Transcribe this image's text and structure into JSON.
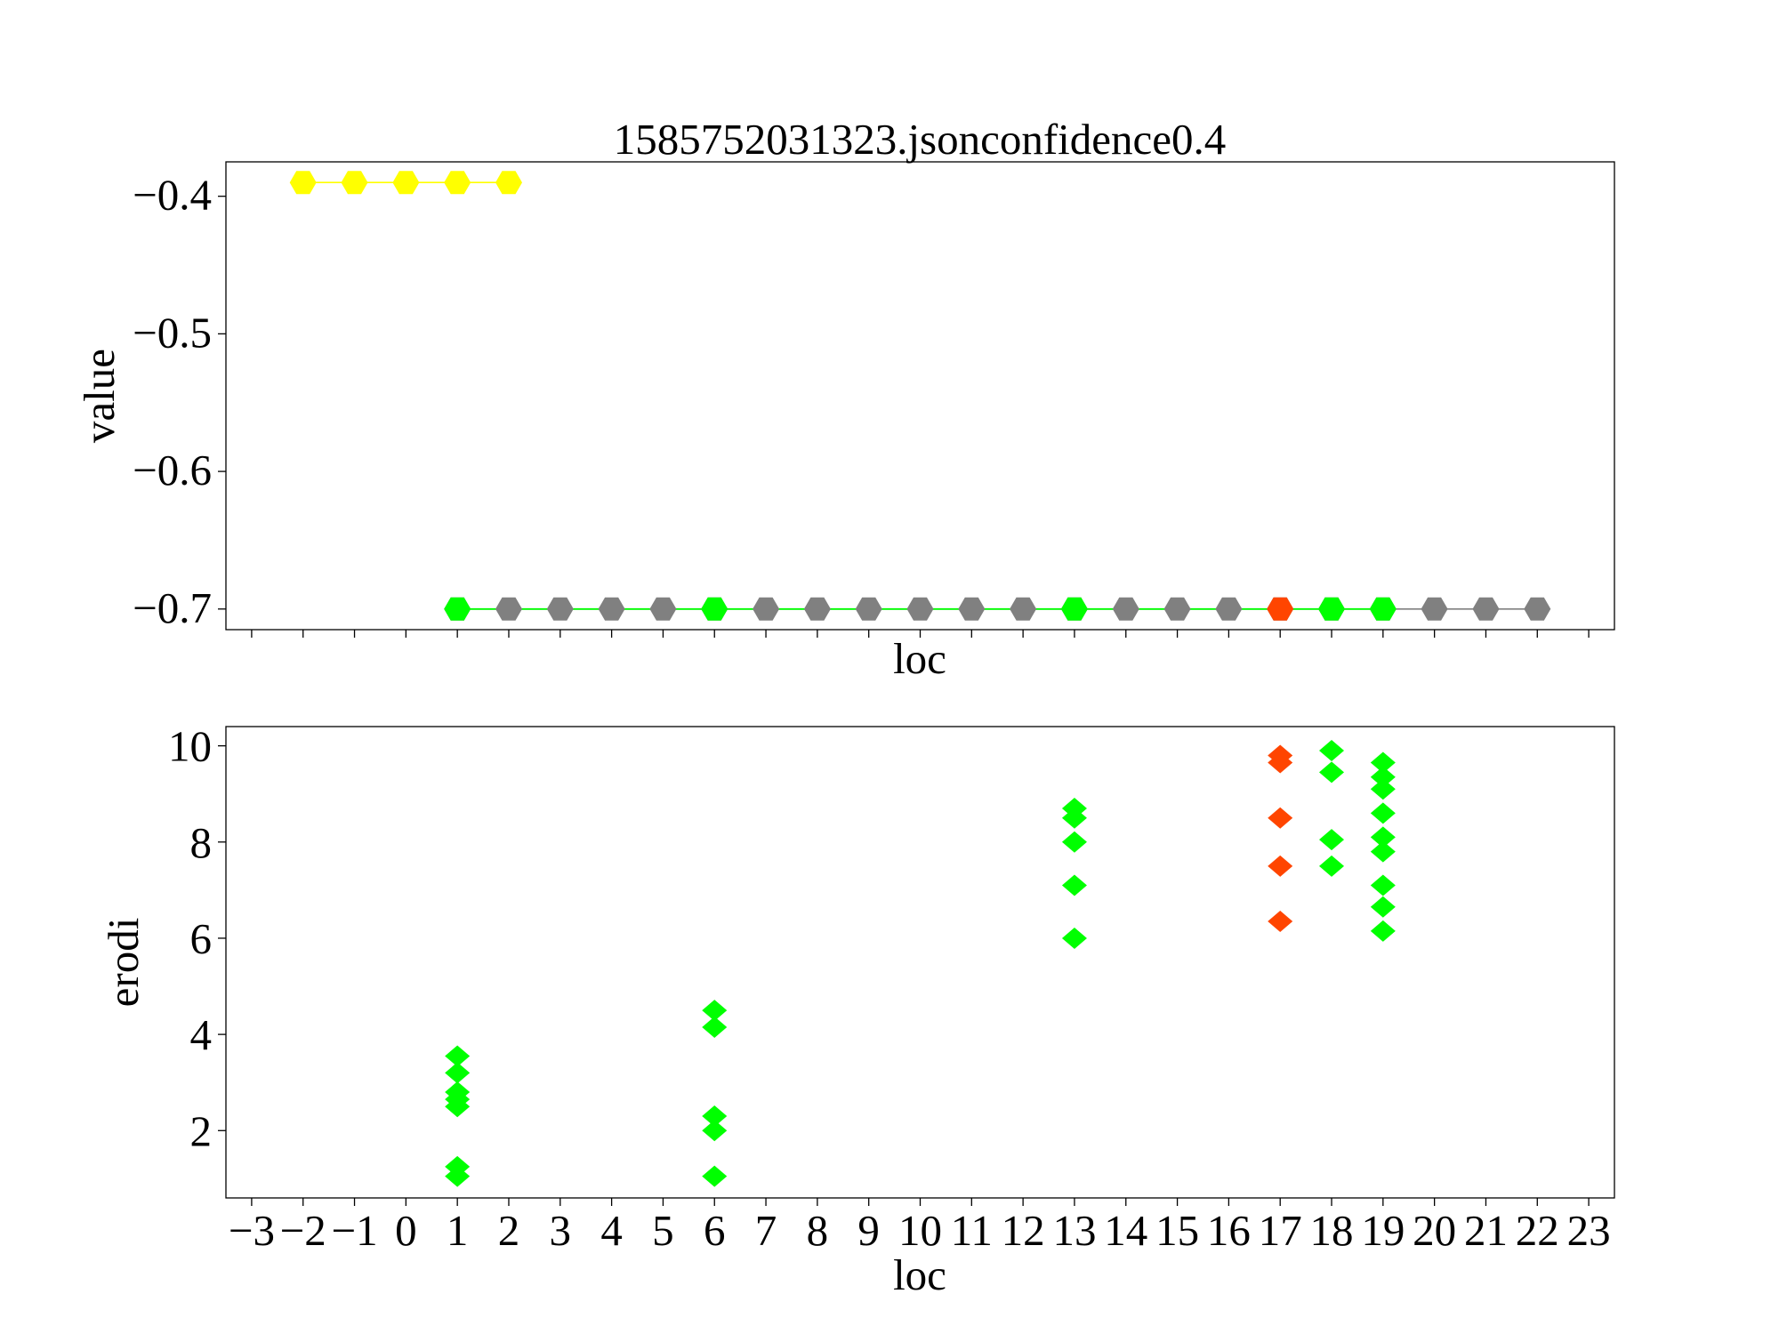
{
  "chart_data": [
    {
      "type": "line",
      "title": "1585752031323.jsonconfidence0.4",
      "xlabel": "loc",
      "ylabel": "value",
      "xlim": [
        -3.5,
        23.5
      ],
      "ylim": [
        -0.715,
        -0.375
      ],
      "yticks": [
        -0.4,
        -0.5,
        -0.6,
        -0.7
      ],
      "ytick_labels": [
        "−0.4",
        "−0.5",
        "−0.6",
        "−0.7"
      ],
      "x_ticklabels_shown": false,
      "grid": false,
      "series": [
        {
          "color": "#ffff00",
          "marker": "hexagon",
          "x": [
            -2,
            -1,
            0,
            1,
            2
          ],
          "y": [
            -0.39,
            -0.39,
            -0.39,
            -0.39,
            -0.39
          ]
        },
        {
          "color": "#808080",
          "marker": "hexagon",
          "x": [
            1,
            2,
            3,
            4,
            5,
            6,
            7,
            8,
            9,
            10,
            11,
            12,
            13,
            14,
            15,
            16,
            17,
            18,
            19,
            20,
            21,
            22
          ],
          "y": [
            -0.7,
            -0.7,
            -0.7,
            -0.7,
            -0.7,
            -0.7,
            -0.7,
            -0.7,
            -0.7,
            -0.7,
            -0.7,
            -0.7,
            -0.7,
            -0.7,
            -0.7,
            -0.7,
            -0.7,
            -0.7,
            -0.7,
            -0.7,
            -0.7,
            -0.7
          ]
        }
      ],
      "highlight_segment": {
        "color": "#00ff00",
        "x": [
          1,
          19
        ],
        "y": -0.7
      },
      "highlight_points": [
        {
          "x": 1,
          "y": -0.7,
          "color": "#00ff00"
        },
        {
          "x": 6,
          "y": -0.7,
          "color": "#00ff00"
        },
        {
          "x": 13,
          "y": -0.7,
          "color": "#00ff00"
        },
        {
          "x": 17,
          "y": -0.7,
          "color": "#ff4500"
        },
        {
          "x": 18,
          "y": -0.7,
          "color": "#00ff00"
        },
        {
          "x": 19,
          "y": -0.7,
          "color": "#00ff00"
        }
      ]
    },
    {
      "type": "scatter",
      "xlabel": "loc",
      "ylabel": "erodi",
      "xlim": [
        -3.5,
        23.5
      ],
      "ylim": [
        0.6,
        10.4
      ],
      "yticks": [
        2,
        4,
        6,
        8,
        10
      ],
      "ytick_labels": [
        "2",
        "4",
        "6",
        "8",
        "10"
      ],
      "xticks": [
        -3,
        -2,
        -1,
        0,
        1,
        2,
        3,
        4,
        5,
        6,
        7,
        8,
        9,
        10,
        11,
        12,
        13,
        14,
        15,
        16,
        17,
        18,
        19,
        20,
        21,
        22,
        23
      ],
      "xtick_labels": [
        "−3",
        "−2",
        "−1",
        "0",
        "1",
        "2",
        "3",
        "4",
        "5",
        "6",
        "7",
        "8",
        "9",
        "10",
        "11",
        "12",
        "13",
        "14",
        "15",
        "16",
        "17",
        "18",
        "19",
        "20",
        "21",
        "22",
        "23"
      ],
      "grid": false,
      "series": [
        {
          "color": "#00ff00",
          "marker": "diamond",
          "points": [
            [
              1,
              3.55
            ],
            [
              1,
              3.2
            ],
            [
              1,
              2.8
            ],
            [
              1,
              2.65
            ],
            [
              1,
              2.5
            ],
            [
              1,
              1.25
            ],
            [
              1,
              1.05
            ],
            [
              6,
              4.5
            ],
            [
              6,
              4.15
            ],
            [
              6,
              2.3
            ],
            [
              6,
              2.0
            ],
            [
              6,
              1.05
            ],
            [
              13,
              8.7
            ],
            [
              13,
              8.5
            ],
            [
              13,
              8.0
            ],
            [
              13,
              7.1
            ],
            [
              13,
              6.0
            ],
            [
              18,
              9.9
            ],
            [
              18,
              9.45
            ],
            [
              18,
              8.05
            ],
            [
              18,
              7.5
            ],
            [
              19,
              9.65
            ],
            [
              19,
              9.35
            ],
            [
              19,
              9.1
            ],
            [
              19,
              8.6
            ],
            [
              19,
              8.1
            ],
            [
              19,
              7.8
            ],
            [
              19,
              7.1
            ],
            [
              19,
              6.65
            ],
            [
              19,
              6.15
            ]
          ]
        },
        {
          "color": "#ff4500",
          "marker": "diamond",
          "points": [
            [
              17,
              9.8
            ],
            [
              17,
              9.65
            ],
            [
              17,
              8.5
            ],
            [
              17,
              7.5
            ],
            [
              17,
              6.35
            ]
          ]
        }
      ]
    }
  ]
}
